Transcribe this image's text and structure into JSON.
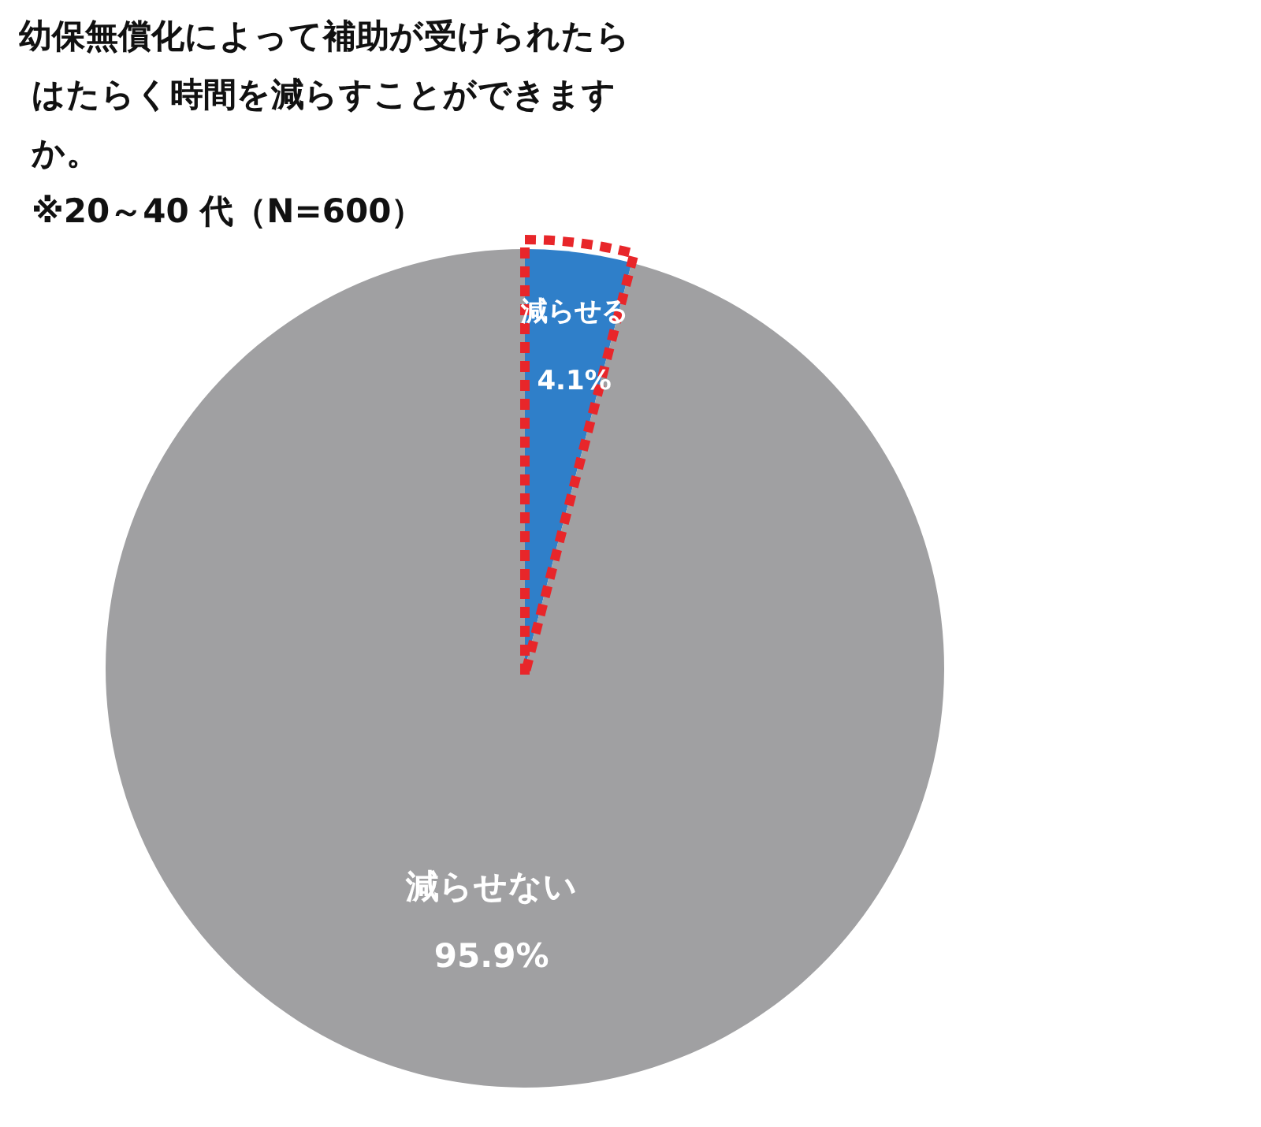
{
  "chart_data": {
    "type": "pie",
    "title": "幼保無償化によって補助が受けられたらはたらく時間を減らすことができますか。",
    "subtitle": "※20～40 代（N=600）",
    "categories": [
      "減らせる",
      "減らせない"
    ],
    "values": [
      4.1,
      95.9
    ],
    "value_labels": [
      "4.1%",
      "95.9%"
    ],
    "colors": [
      "#2f7fc9",
      "#a0a0a2"
    ]
  }
}
